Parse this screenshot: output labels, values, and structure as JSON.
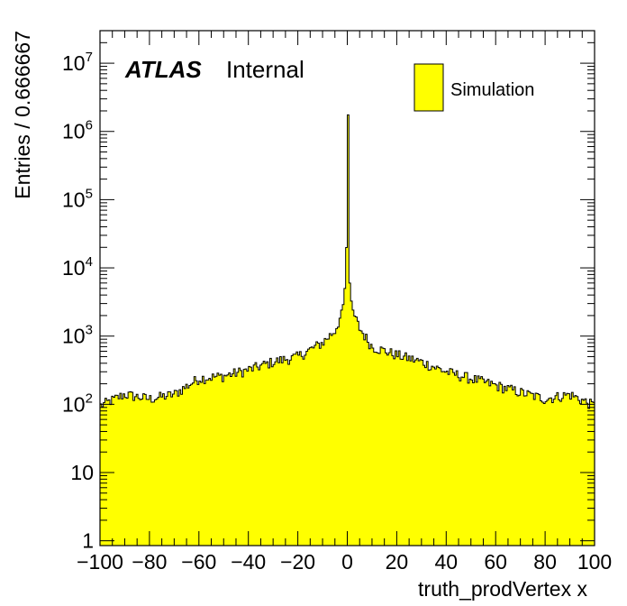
{
  "chart_data": {
    "type": "histogram",
    "x_axis": {
      "label": "truth_prodVertex x",
      "range": [
        -100,
        100
      ],
      "tick_labels": [
        "−100",
        "−80",
        "−60",
        "−40",
        "−20",
        "0",
        "20",
        "40",
        "60",
        "80",
        "100"
      ],
      "tick_values": [
        -100,
        -80,
        -60,
        -40,
        -20,
        0,
        20,
        40,
        60,
        80,
        100
      ]
    },
    "y_axis": {
      "label": "Entries / 0.666667",
      "scale": "log",
      "range": [
        0.85,
        30000000
      ],
      "tick_labels": [
        {
          "value": 1,
          "base": "1",
          "exp": ""
        },
        {
          "value": 10,
          "base": "10",
          "exp": ""
        },
        {
          "value": 100,
          "base": "10",
          "exp": "2"
        },
        {
          "value": 1000,
          "base": "10",
          "exp": "3"
        },
        {
          "value": 10000,
          "base": "10",
          "exp": "4"
        },
        {
          "value": 100000,
          "base": "10",
          "exp": "5"
        },
        {
          "value": 1000000,
          "base": "10",
          "exp": "6"
        },
        {
          "value": 10000000,
          "base": "10",
          "exp": "7"
        }
      ]
    },
    "bin_width": 0.666667,
    "series": [
      {
        "name": "Simulation",
        "color": "#ffff00",
        "edge_color": "#000000",
        "profile": [
          {
            "x": -100,
            "y": 95
          },
          {
            "x": -90,
            "y": 140
          },
          {
            "x": -80,
            "y": 120
          },
          {
            "x": -70,
            "y": 140
          },
          {
            "x": -60,
            "y": 240
          },
          {
            "x": -50,
            "y": 260
          },
          {
            "x": -40,
            "y": 320
          },
          {
            "x": -30,
            "y": 420
          },
          {
            "x": -20,
            "y": 500
          },
          {
            "x": -10,
            "y": 800
          },
          {
            "x": -5,
            "y": 1200
          },
          {
            "x": -2,
            "y": 2200
          },
          {
            "x": -1,
            "y": 5000
          },
          {
            "x": -0.33,
            "y": 20000
          },
          {
            "x": 0,
            "y": 1600000
          },
          {
            "x": 0.33,
            "y": 1800000
          },
          {
            "x": 1,
            "y": 6000
          },
          {
            "x": 2,
            "y": 2400
          },
          {
            "x": 5,
            "y": 1300
          },
          {
            "x": 10,
            "y": 700
          },
          {
            "x": 20,
            "y": 530
          },
          {
            "x": 30,
            "y": 420
          },
          {
            "x": 40,
            "y": 300
          },
          {
            "x": 50,
            "y": 240
          },
          {
            "x": 60,
            "y": 190
          },
          {
            "x": 70,
            "y": 150
          },
          {
            "x": 80,
            "y": 120
          },
          {
            "x": 90,
            "y": 140
          },
          {
            "x": 100,
            "y": 95
          }
        ]
      }
    ],
    "annotations": {
      "atlas": "ATLAS",
      "internal": "Internal"
    },
    "legend": {
      "position": "top-right",
      "entries": [
        "Simulation"
      ]
    }
  }
}
